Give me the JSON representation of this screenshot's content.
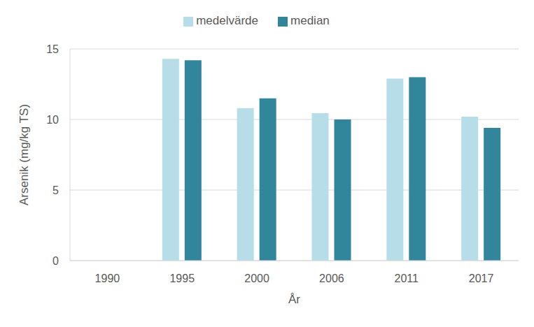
{
  "chart_data": {
    "type": "bar",
    "x_label": "År",
    "y_label": "Arsenik (mg/kg TS)",
    "categories": [
      "1990",
      "1995",
      "2000",
      "2006",
      "2011",
      "2017"
    ],
    "series": [
      {
        "name": "medelvärde",
        "color": "#b7dee8",
        "values": [
          null,
          14.3,
          10.8,
          10.45,
          12.9,
          10.2
        ]
      },
      {
        "name": "median",
        "color": "#31869b",
        "values": [
          null,
          14.2,
          11.5,
          10.0,
          13.0,
          9.4
        ]
      }
    ],
    "ylim": [
      0,
      15
    ],
    "yticks": [
      0,
      5,
      10,
      15
    ],
    "grid": true,
    "legend": "top"
  }
}
